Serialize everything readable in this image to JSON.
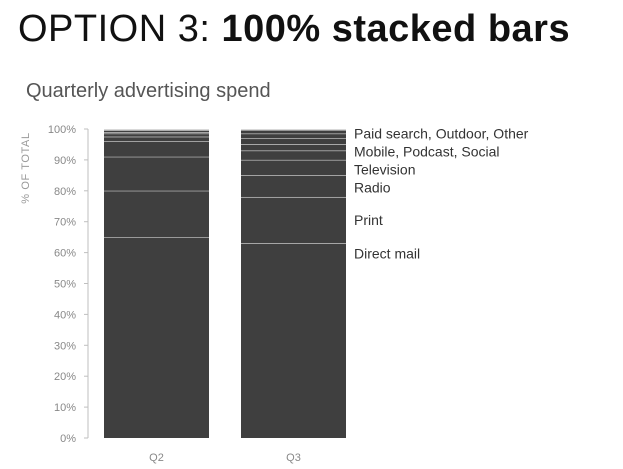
{
  "slide": {
    "title_plain": "OPTION 3: ",
    "title_bold": "100% stacked bars"
  },
  "chart_data": {
    "type": "bar",
    "stacked": "percent",
    "title": "Quarterly advertising spend",
    "ylabel": "% OF TOTAL",
    "xlabel": "",
    "ylim": [
      0,
      100
    ],
    "y_ticks": [
      "0%",
      "10%",
      "20%",
      "30%",
      "40%",
      "50%",
      "60%",
      "70%",
      "80%",
      "90%",
      "100%"
    ],
    "categories": [
      "Q2",
      "Q3"
    ],
    "series": [
      {
        "name": "Direct mail",
        "values": [
          65,
          63
        ]
      },
      {
        "name": "Print",
        "values": [
          15,
          15
        ]
      },
      {
        "name": "Radio",
        "values": [
          11,
          7
        ]
      },
      {
        "name": "Television",
        "values": [
          5,
          5
        ]
      },
      {
        "name": "Mobile",
        "values": [
          1.5,
          3
        ]
      },
      {
        "name": "Podcast",
        "values": [
          1,
          2
        ]
      },
      {
        "name": "Social",
        "values": [
          0.5,
          2
        ]
      },
      {
        "name": "Paid search",
        "values": [
          0.5,
          1.5
        ]
      },
      {
        "name": "Outdoor",
        "values": [
          0.3,
          1
        ]
      },
      {
        "name": "Other",
        "values": [
          0.2,
          0.5
        ]
      }
    ],
    "segment_labels": [
      {
        "text": "Direct mail",
        "series": [
          "Direct mail"
        ]
      },
      {
        "text": "Print",
        "series": [
          "Print"
        ]
      },
      {
        "text": "Radio",
        "series": [
          "Radio"
        ]
      },
      {
        "text": "Television",
        "series": [
          "Television"
        ]
      },
      {
        "text": "Mobile, Podcast, Social",
        "series": [
          "Mobile",
          "Podcast",
          "Social"
        ]
      },
      {
        "text": "Paid search, Outdoor, Other",
        "series": [
          "Paid search",
          "Outdoor",
          "Other"
        ]
      }
    ],
    "label_category": "Q3",
    "grid": false,
    "colors": {
      "bar": "#3f3f3f",
      "separator": "#ffffff",
      "bar_top": "#d9d9d9",
      "axis": "#bfbfbf"
    }
  }
}
